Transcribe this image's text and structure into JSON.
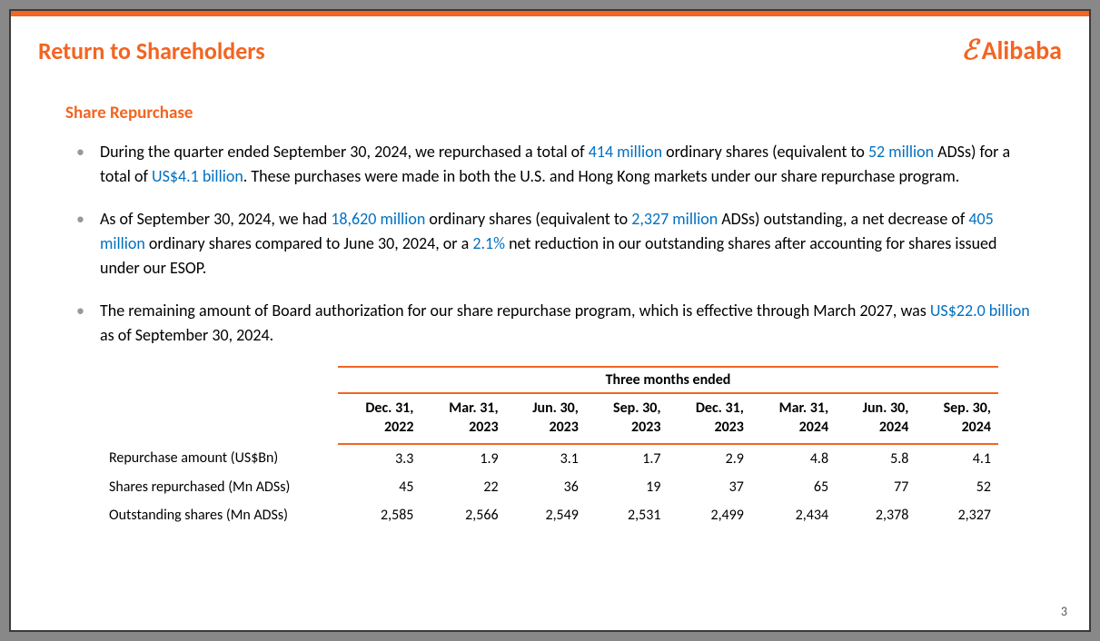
{
  "header": {
    "title": "Return to Shareholders",
    "logo_text": "Alibaba"
  },
  "section": {
    "title": "Share Repurchase"
  },
  "bullets": {
    "b1": {
      "t1": "During the quarter ended September 30, 2024, we repurchased a total of ",
      "h1": "414 million",
      "t2": " ordinary shares (equivalent to ",
      "h2": "52 million",
      "t3": " ADSs) for a total of ",
      "h3": "US$4.1 billion",
      "t4": ". These purchases were made in both the U.S. and Hong Kong markets under our share repurchase program."
    },
    "b2": {
      "t1": "As of September 30, 2024, we had ",
      "h1": "18,620 million",
      "t2": " ordinary shares (equivalent to ",
      "h2": "2,327 million",
      "t3": " ADSs) outstanding, a net decrease of ",
      "h3": "405 million",
      "t4": " ordinary shares compared to June 30, 2024, or a ",
      "h4": "2.1%",
      "t5": " net reduction in our outstanding shares after accounting for shares issued under our ESOP."
    },
    "b3": {
      "t1": "The remaining amount of Board authorization for our share repurchase program, which is effective through March 2027, was ",
      "h1": "US$22.0 billion",
      "t2": " as of September 30, 2024."
    }
  },
  "table": {
    "super_header": "Three months ended",
    "columns": [
      "Dec. 31,\n2022",
      "Mar. 31,\n2023",
      "Jun. 30,\n2023",
      "Sep. 30,\n2023",
      "Dec. 31,\n2023",
      "Mar. 31,\n2024",
      "Jun. 30,\n2024",
      "Sep. 30,\n2024"
    ],
    "rows": [
      {
        "label": "Repurchase amount (US$Bn)",
        "values": [
          "3.3",
          "1.9",
          "3.1",
          "1.7",
          "2.9",
          "4.8",
          "5.8",
          "4.1"
        ]
      },
      {
        "label": "Shares repurchased (Mn ADSs)",
        "values": [
          "45",
          "22",
          "36",
          "19",
          "37",
          "65",
          "77",
          "52"
        ]
      },
      {
        "label": "Outstanding shares (Mn ADSs)",
        "values": [
          "2,585",
          "2,566",
          "2,549",
          "2,531",
          "2,499",
          "2,434",
          "2,378",
          "2,327"
        ]
      }
    ]
  },
  "page_number": "3",
  "colors": {
    "accent": "#f26522",
    "highlight": "#0070c0"
  }
}
